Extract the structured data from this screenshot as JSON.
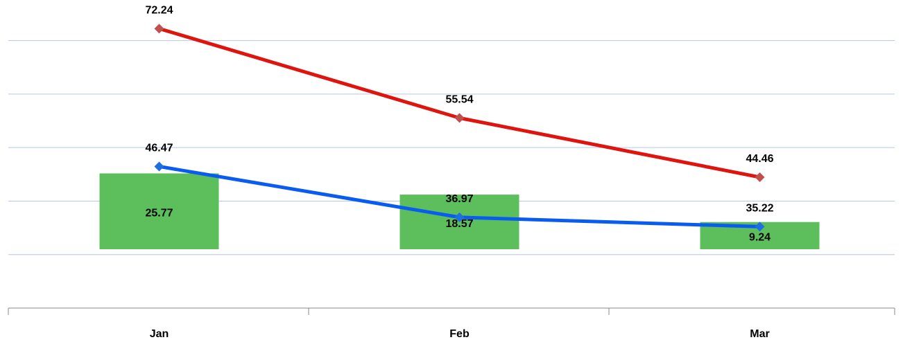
{
  "chart_data": {
    "type": "combo",
    "categories": [
      "Jan",
      "Feb",
      "Mar"
    ],
    "series": [
      {
        "type": "bar",
        "axis": "y2",
        "color": "#5cbf5c",
        "values": [
          25.77,
          18.57,
          9.24
        ]
      },
      {
        "type": "line",
        "color": "#e0140f",
        "marker_color": "#c0504d",
        "values": [
          72.24,
          55.54,
          44.46
        ]
      },
      {
        "type": "line",
        "color": "#0a5cf0",
        "marker_color": "#1f6fe0",
        "values": [
          46.47,
          36.97,
          35.22
        ]
      }
    ],
    "ylim": [
      20,
      75
    ],
    "yticks": [
      30,
      40,
      50,
      60,
      70
    ],
    "y2lim": [
      -20,
      80
    ],
    "grid": true
  }
}
